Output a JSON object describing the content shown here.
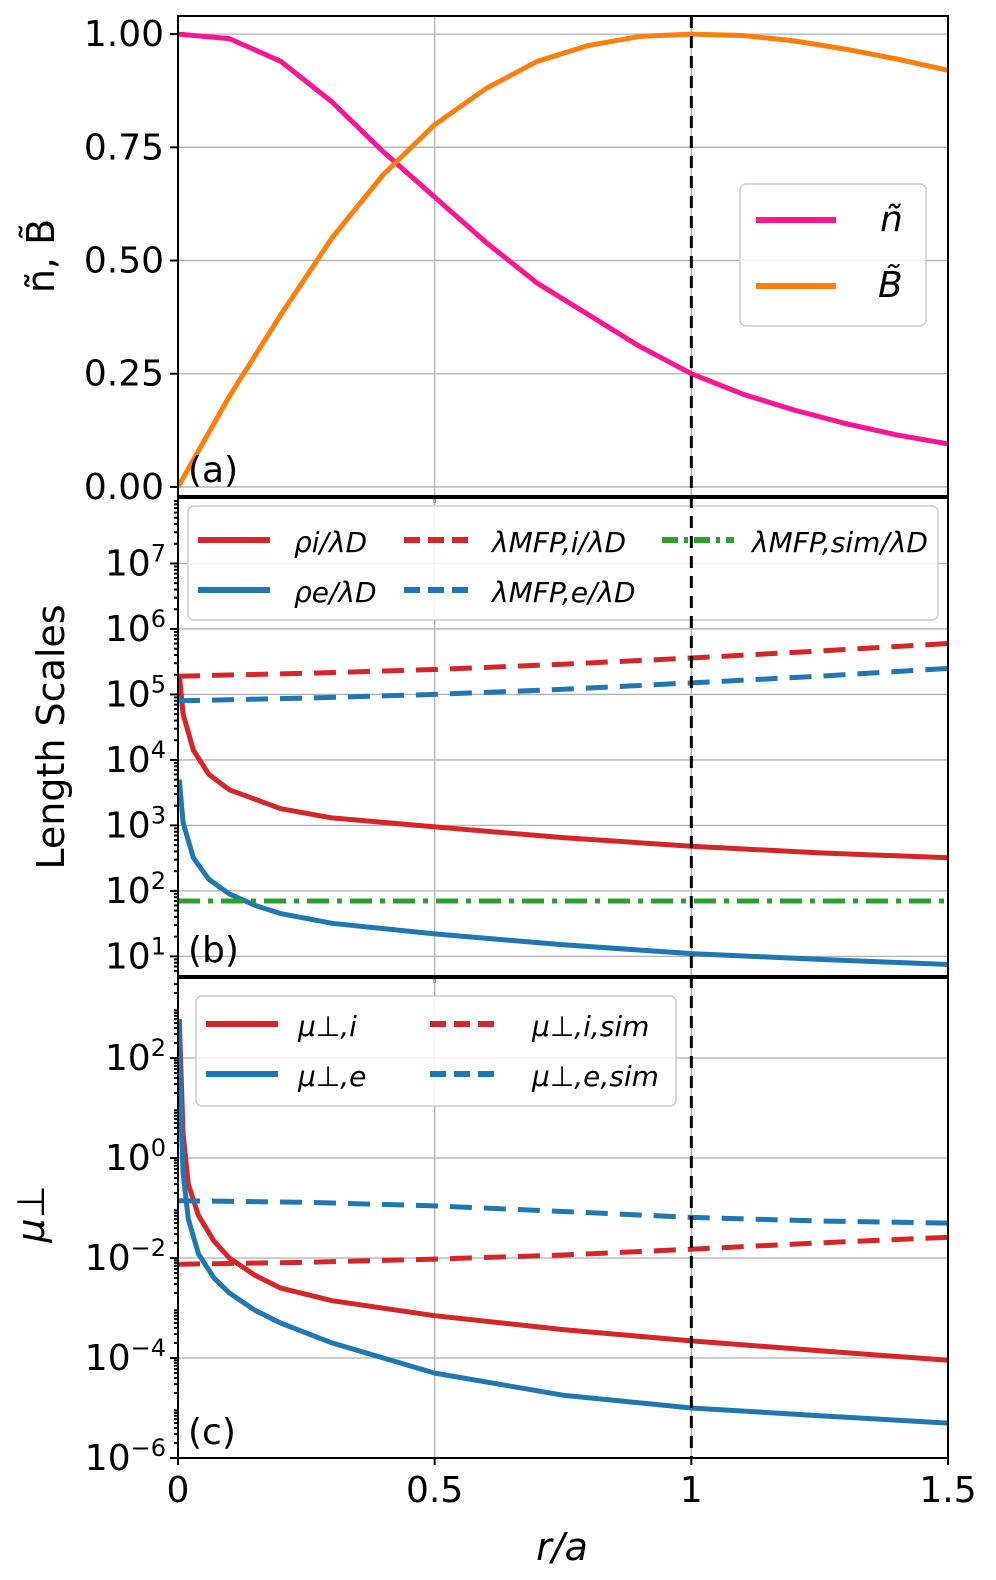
{
  "chart_data": [
    {
      "type": "line",
      "panel_label": "(a)",
      "ylabel": "ñ, B̃",
      "yscale": "linear",
      "xlim": [
        0,
        1.5
      ],
      "ylim": [
        -0.02,
        1.04
      ],
      "yticks": [
        {
          "v": 0.0,
          "label": "0.00"
        },
        {
          "v": 0.25,
          "label": "0.25"
        },
        {
          "v": 0.5,
          "label": "0.50"
        },
        {
          "v": 0.75,
          "label": "0.75"
        },
        {
          "v": 1.0,
          "label": "1.00"
        }
      ],
      "legend_position": "center-right",
      "series": [
        {
          "name": "ñ",
          "color": "#ff1493",
          "dash": "solid",
          "x": [
            0,
            0.1,
            0.2,
            0.3,
            0.4,
            0.5,
            0.6,
            0.7,
            0.8,
            0.9,
            1.0,
            1.1,
            1.2,
            1.3,
            1.4,
            1.5
          ],
          "y": [
            1.0,
            0.99,
            0.94,
            0.85,
            0.74,
            0.64,
            0.54,
            0.45,
            0.38,
            0.31,
            0.25,
            0.205,
            0.17,
            0.14,
            0.115,
            0.095
          ]
        },
        {
          "name": "B̃",
          "color": "#ff7f0e",
          "dash": "solid",
          "x": [
            0,
            0.1,
            0.2,
            0.3,
            0.4,
            0.5,
            0.6,
            0.7,
            0.8,
            0.9,
            1.0,
            1.1,
            1.2,
            1.3,
            1.4,
            1.5
          ],
          "y": [
            0.0,
            0.2,
            0.38,
            0.55,
            0.69,
            0.8,
            0.88,
            0.94,
            0.975,
            0.995,
            1.0,
            0.997,
            0.985,
            0.967,
            0.945,
            0.92
          ]
        }
      ]
    },
    {
      "type": "line",
      "panel_label": "(b)",
      "ylabel": "Length Scales",
      "yscale": "log",
      "xlim": [
        0,
        1.5
      ],
      "ylim_log10": [
        0.7,
        8.0
      ],
      "yticks": [
        {
          "v": 1,
          "base": "10",
          "exp": "1"
        },
        {
          "v": 2,
          "base": "10",
          "exp": "2"
        },
        {
          "v": 3,
          "base": "10",
          "exp": "3"
        },
        {
          "v": 4,
          "base": "10",
          "exp": "4"
        },
        {
          "v": 5,
          "base": "10",
          "exp": "5"
        },
        {
          "v": 6,
          "base": "10",
          "exp": "6"
        },
        {
          "v": 7,
          "base": "10",
          "exp": "7"
        }
      ],
      "legend_position": "top",
      "series": [
        {
          "name": "ρi/λD",
          "color": "#d62728",
          "dash": "solid",
          "x": [
            0.0025,
            0.01,
            0.03,
            0.06,
            0.1,
            0.2,
            0.3,
            0.5,
            0.75,
            1.0,
            1.25,
            1.5
          ],
          "y": [
            200000,
            50000,
            14000,
            6000,
            3500,
            1800,
            1300,
            950,
            650,
            480,
            380,
            320
          ]
        },
        {
          "name": "ρe/λD",
          "color": "#1f77b4",
          "dash": "solid",
          "x": [
            0.0025,
            0.01,
            0.03,
            0.06,
            0.1,
            0.15,
            0.2,
            0.3,
            0.5,
            0.75,
            1.0,
            1.25,
            1.5
          ],
          "y": [
            5000,
            1100,
            320,
            150,
            90,
            60,
            45,
            32,
            22,
            15,
            11,
            9,
            7.5
          ]
        },
        {
          "name": "λMFP,i/λD",
          "color": "#d62728",
          "dash": "dashed",
          "x": [
            0,
            0.25,
            0.5,
            0.75,
            1.0,
            1.25,
            1.5
          ],
          "y": [
            190000,
            210000,
            240000,
            290000,
            360000,
            460000,
            600000
          ]
        },
        {
          "name": "λMFP,e/λD",
          "color": "#1f77b4",
          "dash": "dashed",
          "x": [
            0,
            0.25,
            0.5,
            0.75,
            1.0,
            1.25,
            1.5
          ],
          "y": [
            80000,
            88000,
            100000,
            120000,
            150000,
            190000,
            250000
          ]
        },
        {
          "name": "λMFP,sim/λD",
          "color": "#2ca02c",
          "dash": "dashdot",
          "x": [
            0,
            1.5
          ],
          "y": [
            70,
            70
          ]
        }
      ]
    },
    {
      "type": "line",
      "panel_label": "(c)",
      "ylabel": "μ⊥",
      "yscale": "log",
      "xlim": [
        0,
        1.5
      ],
      "xlabel": "r/a",
      "ylim_log10": [
        -6.0,
        3.6
      ],
      "yticks": [
        {
          "v": -6,
          "base": "10",
          "exp": "−6"
        },
        {
          "v": -4,
          "base": "10",
          "exp": "−4"
        },
        {
          "v": -2,
          "base": "10",
          "exp": "−2"
        },
        {
          "v": 0,
          "base": "10",
          "exp": "0"
        },
        {
          "v": 2,
          "base": "10",
          "exp": "2"
        }
      ],
      "xticks": [
        {
          "v": 0,
          "label": "0"
        },
        {
          "v": 0.5,
          "label": "0.5"
        },
        {
          "v": 1.0,
          "label": "1"
        },
        {
          "v": 1.5,
          "label": "1.5"
        }
      ],
      "legend_position": "top-left",
      "series": [
        {
          "name": "μ⊥,i",
          "color": "#d62728",
          "dash": "solid",
          "x": [
            0.0025,
            0.01,
            0.02,
            0.04,
            0.07,
            0.1,
            0.15,
            0.2,
            0.3,
            0.5,
            0.75,
            1.0,
            1.25,
            1.5
          ],
          "y": [
            600,
            3,
            0.3,
            0.07,
            0.022,
            0.01,
            0.0045,
            0.0025,
            0.0014,
            0.0007,
            0.00037,
            0.00022,
            0.00014,
            9e-05
          ]
        },
        {
          "name": "μ⊥,e",
          "color": "#1f77b4",
          "dash": "solid",
          "x": [
            0.0025,
            0.005,
            0.01,
            0.02,
            0.04,
            0.07,
            0.1,
            0.15,
            0.2,
            0.3,
            0.5,
            0.75,
            1.0,
            1.25,
            1.5
          ],
          "y": [
            600,
            10,
            0.5,
            0.06,
            0.012,
            0.004,
            0.002,
            0.0009,
            0.0005,
            0.0002,
            5e-05,
            1.8e-05,
            1e-05,
            7e-06,
            5e-06
          ]
        },
        {
          "name": "μ⊥,i,sim",
          "color": "#d62728",
          "dash": "dashed",
          "x": [
            0,
            0.25,
            0.5,
            0.75,
            1.0,
            1.25,
            1.5
          ],
          "y": [
            0.0075,
            0.0082,
            0.0095,
            0.0115,
            0.015,
            0.02,
            0.026
          ]
        },
        {
          "name": "μ⊥,e,sim",
          "color": "#1f77b4",
          "dash": "dashed",
          "x": [
            0,
            0.25,
            0.5,
            0.75,
            1.0,
            1.25,
            1.5
          ],
          "y": [
            0.14,
            0.13,
            0.11,
            0.085,
            0.065,
            0.055,
            0.05
          ]
        }
      ]
    }
  ],
  "vertical_marker": {
    "x": 1.0,
    "style": "dashed",
    "color": "#000000"
  }
}
